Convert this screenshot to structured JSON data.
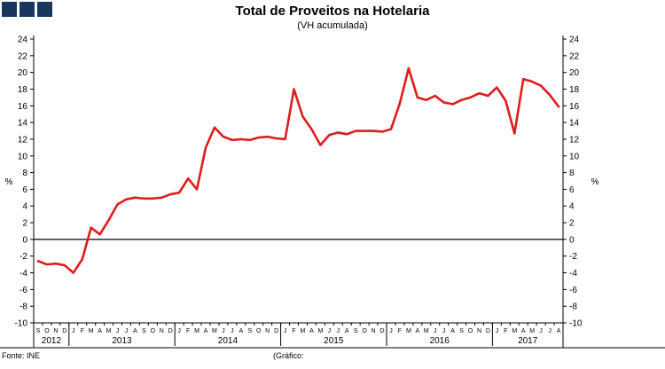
{
  "logo": {
    "color": "#17375d",
    "square_count": 3
  },
  "header": {
    "title": "Total de Proveitos na Hotelaria",
    "subtitle": "(VH acumulada)"
  },
  "footer": {
    "source": "Fonte: INE",
    "credit": "(Gráfico:"
  },
  "chart_data": {
    "type": "line",
    "title": "Total de Proveitos na Hotelaria",
    "subtitle": "(VH acumulada)",
    "ylabel_left": "%",
    "ylabel_right": "%",
    "ylim": [
      -10,
      24
    ],
    "ytick_step": 2,
    "grid": false,
    "legend": "none",
    "line_color": "#e01b1b",
    "years": [
      {
        "label": "2012",
        "months": [
          "S",
          "O",
          "N",
          "D"
        ]
      },
      {
        "label": "2013",
        "months": [
          "J",
          "F",
          "M",
          "A",
          "M",
          "J",
          "J",
          "A",
          "S",
          "O",
          "N",
          "D"
        ]
      },
      {
        "label": "2014",
        "months": [
          "J",
          "F",
          "M",
          "A",
          "M",
          "J",
          "J",
          "A",
          "S",
          "O",
          "N",
          "D"
        ]
      },
      {
        "label": "2015",
        "months": [
          "J",
          "F",
          "M",
          "A",
          "M",
          "J",
          "J",
          "A",
          "S",
          "O",
          "N",
          "D"
        ]
      },
      {
        "label": "2016",
        "months": [
          "J",
          "F",
          "M",
          "A",
          "M",
          "J",
          "J",
          "A",
          "S",
          "O",
          "N",
          "D"
        ]
      },
      {
        "label": "2017",
        "months": [
          "J",
          "F",
          "M",
          "A",
          "M",
          "J",
          "J",
          "A"
        ]
      }
    ],
    "values": [
      -2.6,
      -3.0,
      -2.9,
      -3.1,
      -4.0,
      -2.4,
      1.4,
      0.6,
      2.3,
      4.2,
      4.8,
      5.0,
      4.9,
      4.9,
      5.0,
      5.4,
      5.6,
      7.3,
      6.0,
      11.0,
      13.4,
      12.3,
      11.9,
      12.0,
      11.9,
      12.2,
      12.3,
      12.1,
      12.0,
      18.0,
      14.7,
      13.2,
      11.3,
      12.5,
      12.8,
      12.6,
      13.0,
      13.0,
      13.0,
      12.9,
      13.2,
      16.3,
      20.5,
      17.0,
      16.7,
      17.2,
      16.4,
      16.2,
      16.7,
      17.0,
      17.5,
      17.2,
      18.2,
      16.6,
      12.7,
      19.2,
      18.9,
      18.4,
      17.3,
      15.9
    ]
  }
}
